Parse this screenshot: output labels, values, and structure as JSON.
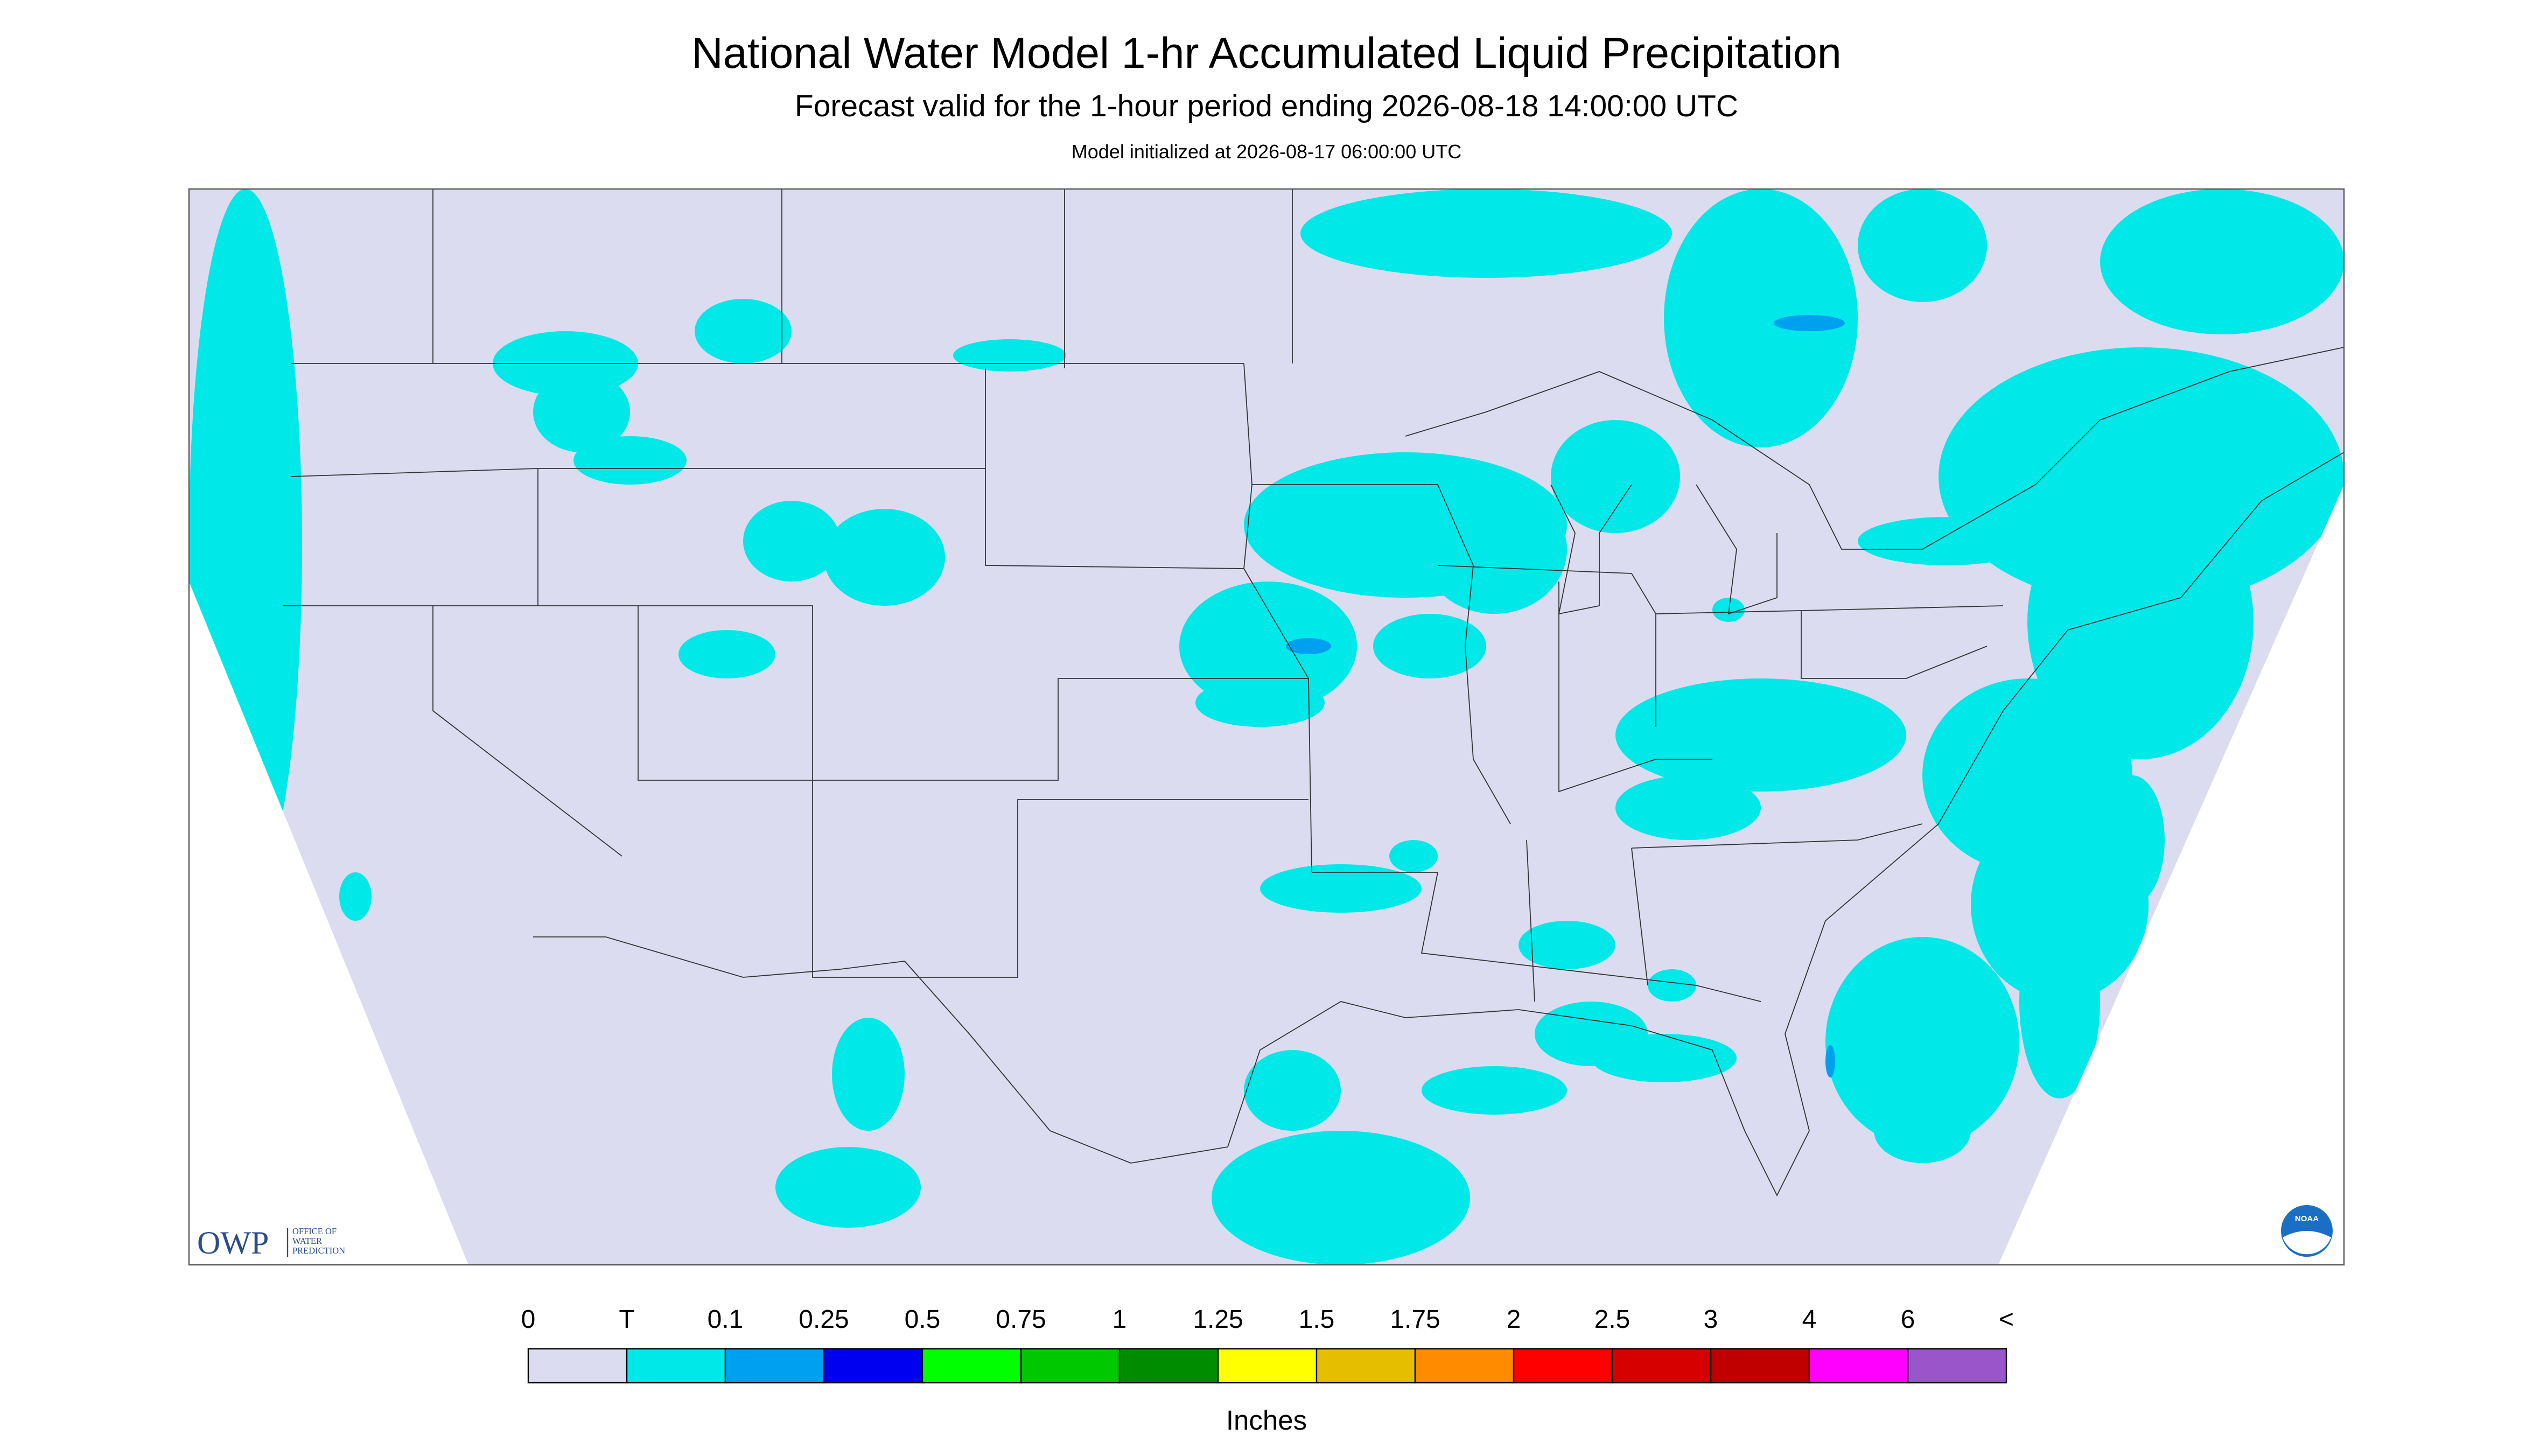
{
  "header": {
    "title": "National Water Model 1-hr Accumulated Liquid Precipitation",
    "subtitle": "Forecast valid for the 1-hour period ending 2026-08-18 14:00:00 UTC",
    "note": "Model initialized at 2026-08-17 06:00:00 UTC"
  },
  "logos": {
    "owp": "OWP",
    "owp_text": [
      "OFFICE OF",
      "WATER",
      "PREDICTION"
    ],
    "noaa": "NOAA"
  },
  "legend": {
    "labels": [
      "0",
      "T",
      "0.1",
      "0.25",
      "0.5",
      "0.75",
      "1",
      "1.25",
      "1.5",
      "1.75",
      "2",
      "2.5",
      "3",
      "4",
      "6",
      "<"
    ],
    "colors": [
      "#dcdcf0",
      "#00e8e8",
      "#00a0f0",
      "#0000f0",
      "#00ff00",
      "#00c800",
      "#008c00",
      "#ffff00",
      "#e6be00",
      "#ff8c00",
      "#ff0000",
      "#d60000",
      "#c00000",
      "#ff00ff",
      "#9955c9"
    ],
    "units": "Inches"
  }
}
